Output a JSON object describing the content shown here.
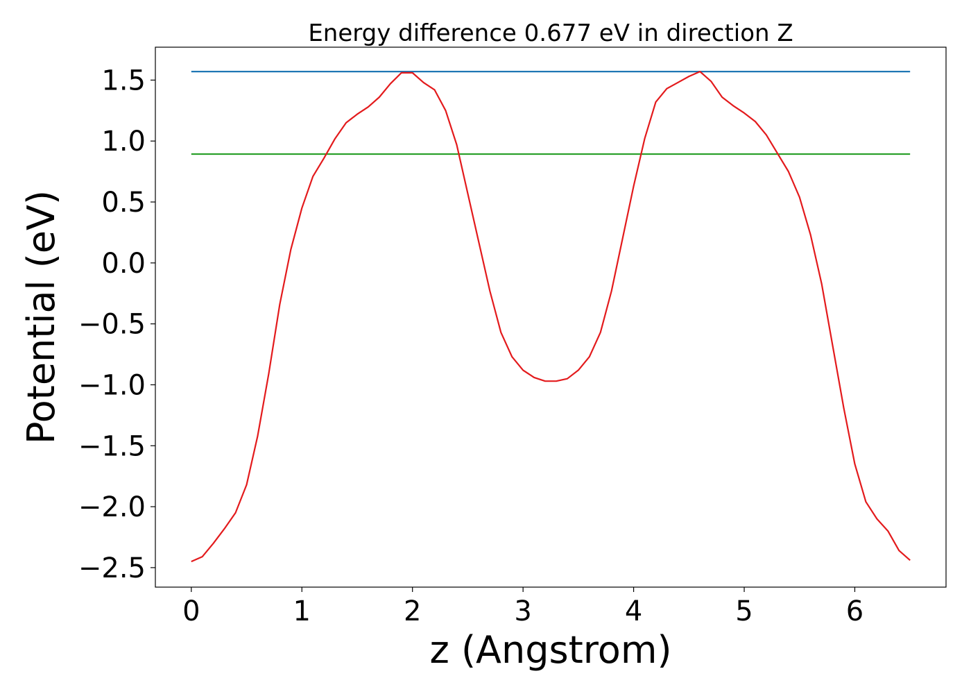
{
  "chart_data": {
    "type": "line",
    "title": "Energy difference 0.677 eV in direction Z",
    "xlabel": "z (Angstrom)",
    "ylabel": "Potential (eV)",
    "xlim": [
      -0.325,
      6.825
    ],
    "ylim": [
      -2.66,
      1.77
    ],
    "xticks": [
      0,
      1,
      2,
      3,
      4,
      5,
      6
    ],
    "yticks": [
      {
        "value": -2.5,
        "label": "−2.5"
      },
      {
        "value": -2.0,
        "label": "−2.0"
      },
      {
        "value": -1.5,
        "label": "−1.5"
      },
      {
        "value": -1.0,
        "label": "−1.0"
      },
      {
        "value": -0.5,
        "label": "−0.5"
      },
      {
        "value": 0,
        "label": "0.0"
      },
      0.5,
      {
        "value": 1.0,
        "label": "1.0"
      },
      1.5
    ],
    "grid": false,
    "series": [
      {
        "color": "#1f77b4",
        "x": [
          0,
          6.5
        ],
        "values": [
          1.57,
          1.57
        ]
      },
      {
        "color": "#2ca02c",
        "x": [
          0,
          6.5
        ],
        "values": [
          0.893,
          0.893
        ]
      },
      {
        "color": "#e31a1c",
        "x": [
          0,
          0.1,
          0.2,
          0.3,
          0.4,
          0.5,
          0.6,
          0.7,
          0.8,
          0.9,
          1.0,
          1.1,
          1.2,
          1.3,
          1.4,
          1.5,
          1.6,
          1.7,
          1.8,
          1.9,
          2.0,
          2.1,
          2.2,
          2.3,
          2.4,
          2.5,
          2.6,
          2.7,
          2.8,
          2.9,
          3.0,
          3.1,
          3.2,
          3.3,
          3.4,
          3.5,
          3.6,
          3.7,
          3.8,
          3.9,
          4.0,
          4.1,
          4.2,
          4.3,
          4.4,
          4.5,
          4.6,
          4.7,
          4.8,
          4.9,
          5.0,
          5.1,
          5.2,
          5.3,
          5.4,
          5.5,
          5.6,
          5.7,
          5.8,
          5.9,
          6.0,
          6.1,
          6.2,
          6.3,
          6.4,
          6.5
        ],
        "values": [
          -2.45,
          -2.41,
          -2.3,
          -2.18,
          -2.05,
          -1.82,
          -1.42,
          -0.91,
          -0.34,
          0.11,
          0.45,
          0.71,
          0.86,
          1.02,
          1.15,
          1.22,
          1.28,
          1.36,
          1.47,
          1.56,
          1.56,
          1.48,
          1.42,
          1.25,
          0.97,
          0.57,
          0.17,
          -0.23,
          -0.57,
          -0.77,
          -0.88,
          -0.94,
          -0.97,
          -0.97,
          -0.95,
          -0.88,
          -0.77,
          -0.57,
          -0.23,
          0.2,
          0.63,
          1.02,
          1.32,
          1.43,
          1.48,
          1.53,
          1.57,
          1.49,
          1.36,
          1.29,
          1.23,
          1.16,
          1.05,
          0.9,
          0.75,
          0.54,
          0.23,
          -0.17,
          -0.68,
          -1.19,
          -1.65,
          -1.96,
          -2.1,
          -2.2,
          -2.36,
          -2.44
        ]
      }
    ]
  }
}
